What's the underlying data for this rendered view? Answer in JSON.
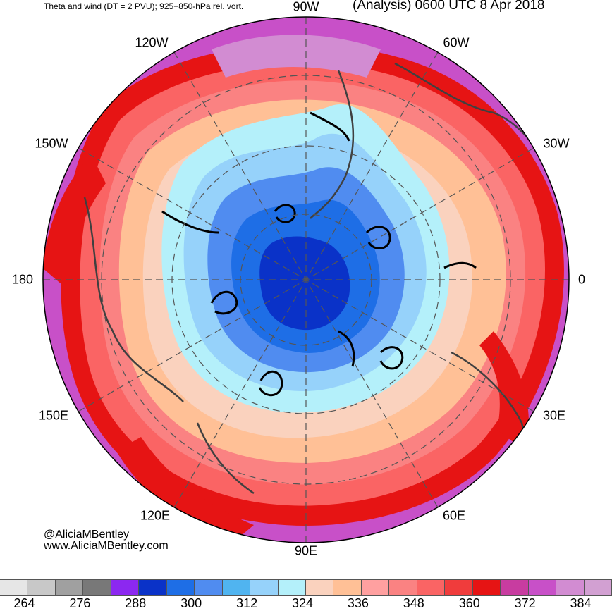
{
  "header": {
    "left_title": "Theta and wind (DT = 2 PVU); 925−850-hPa rel. vort.",
    "right_title": "(Analysis) 0600 UTC 8 Apr 2018"
  },
  "map": {
    "projection": "north-polar-stereographic",
    "longitude_labels": [
      "90W",
      "60W",
      "30W",
      "0",
      "30E",
      "60E",
      "90E",
      "120E",
      "150E",
      "180",
      "150W",
      "120W"
    ]
  },
  "credits": {
    "handle": "@AliciaMBentley",
    "website": "www.AliciaMBentley.com"
  },
  "colorbar": {
    "variable": "theta",
    "colors": [
      "#e6e6e6",
      "#c8c8c8",
      "#a0a0a0",
      "#787878",
      "#8c28f0",
      "#0a32c8",
      "#1e6ee6",
      "#508cf0",
      "#50b4f0",
      "#96d2fa",
      "#b4f0fa",
      "#fad2be",
      "#ffc096",
      "#ffa0a0",
      "#fa8282",
      "#fa6464",
      "#f03c3c",
      "#e61414",
      "#c83ca0",
      "#c850c8",
      "#d28cd2",
      "#d2a0d2"
    ],
    "labels": [
      "264",
      "276",
      "288",
      "300",
      "312",
      "324",
      "336",
      "348",
      "360",
      "372",
      "384"
    ]
  }
}
